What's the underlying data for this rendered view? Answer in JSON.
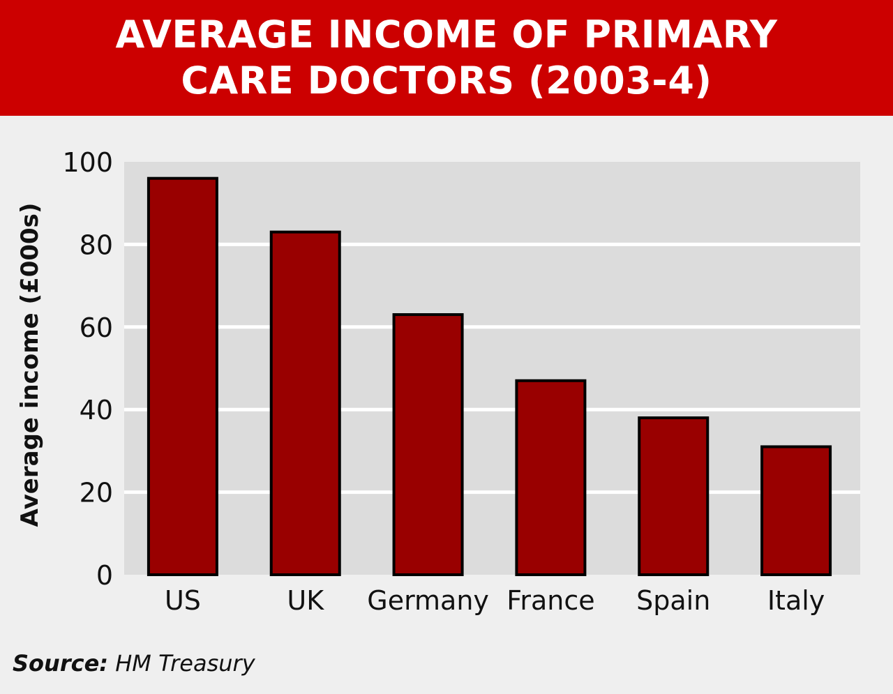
{
  "header": {
    "title": "AVERAGE INCOME OF PRIMARY CARE DOCTORS (2003-4)"
  },
  "colors": {
    "header_bg": "#cc0000",
    "bar": "#990000",
    "plot_bg": "#dcdcdc",
    "gridline": "#ffffff"
  },
  "chart_data": {
    "type": "bar",
    "title": "AVERAGE INCOME OF PRIMARY CARE DOCTORS (2003-4)",
    "xlabel": "",
    "ylabel": "Average income (£000s)",
    "categories": [
      "US",
      "UK",
      "Germany",
      "France",
      "Spain",
      "Italy"
    ],
    "values": [
      96,
      83,
      63,
      47,
      38,
      31
    ],
    "ylim": [
      0,
      100
    ],
    "yticks": [
      "0",
      "20",
      "40",
      "60",
      "80",
      "100"
    ],
    "grid": true,
    "legend": "none"
  },
  "footer": {
    "source_label": "Source:",
    "source_value": "HM Treasury"
  }
}
